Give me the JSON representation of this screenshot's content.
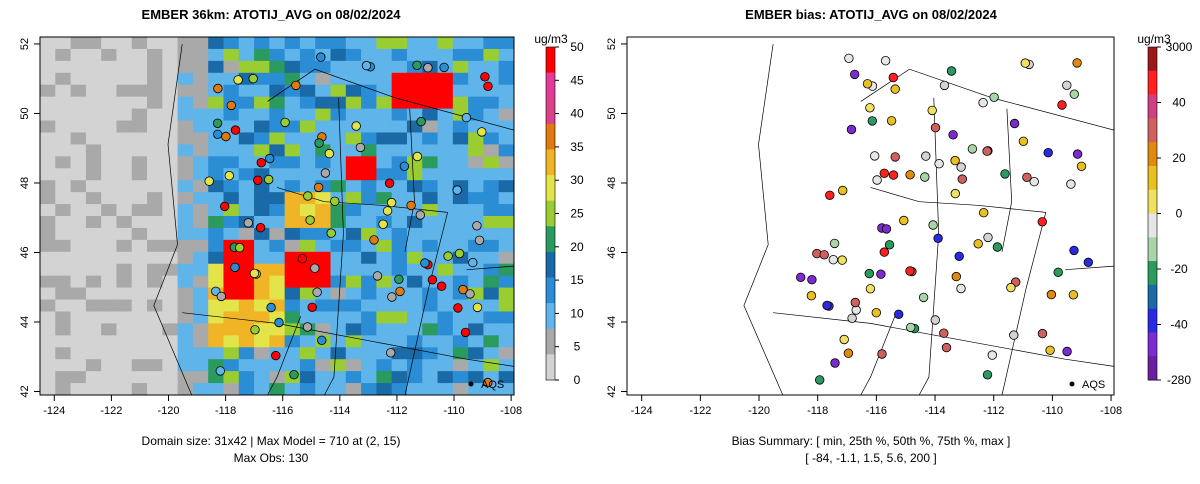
{
  "left_panel": {
    "title": "EMBER 36km: ATOTIJ_AVG on 08/02/2024",
    "caption_line1": "Domain size: 31x42 | Max Model = 710 at (2, 15)",
    "caption_line2": "Max Obs: 130",
    "colorbar_unit": "ug/m3",
    "colorbar_ticks": [
      "50",
      "45",
      "40",
      "35",
      "30",
      "25",
      "20",
      "15",
      "10",
      "5",
      "0"
    ],
    "station_label": "AQS"
  },
  "right_panel": {
    "title": "EMBER bias: ATOTIJ_AVG on 08/02/2024",
    "caption_line1": "Bias Summary: [ min, 25th %, 50th %, 75th %, max ]",
    "caption_line2": "[ -84,   -1.1,   1.5,   5.6,   200 ]",
    "colorbar_unit": "ug/m3",
    "colorbar_ticks": [
      "3000",
      "40",
      "20",
      "0",
      "-20",
      "-40",
      "-280"
    ],
    "station_label": "AQS"
  },
  "axes": {
    "x_ticks": [
      "-124",
      "-122",
      "-120",
      "-118",
      "-116",
      "-114",
      "-112",
      "-110",
      "-108"
    ],
    "y_ticks": [
      "42",
      "44",
      "46",
      "48",
      "50",
      "52"
    ],
    "xlim": [
      -124.5,
      -107.9
    ],
    "ylim": [
      41.9,
      52.2
    ]
  },
  "colors": {
    "conc_scale": [
      "#d3d3d3",
      "#a9a9a9",
      "#5fb4ea",
      "#2b8dd4",
      "#1a6aa8",
      "#2a9a5f",
      "#9acd32",
      "#e3e34a",
      "#f0b427",
      "#e07a10",
      "#d9428a",
      "#e33a9a",
      "#ff0000"
    ],
    "bias_scale": [
      "#6b1fa0",
      "#7b2bd0",
      "#2a2ae0",
      "#1a6aa8",
      "#2a9a5f",
      "#a8d4a8",
      "#e6e6e6",
      "#f0e060",
      "#e8c020",
      "#e08a10",
      "#d06060",
      "#d04080",
      "#ff2020",
      "#9a1a1a"
    ]
  }
}
